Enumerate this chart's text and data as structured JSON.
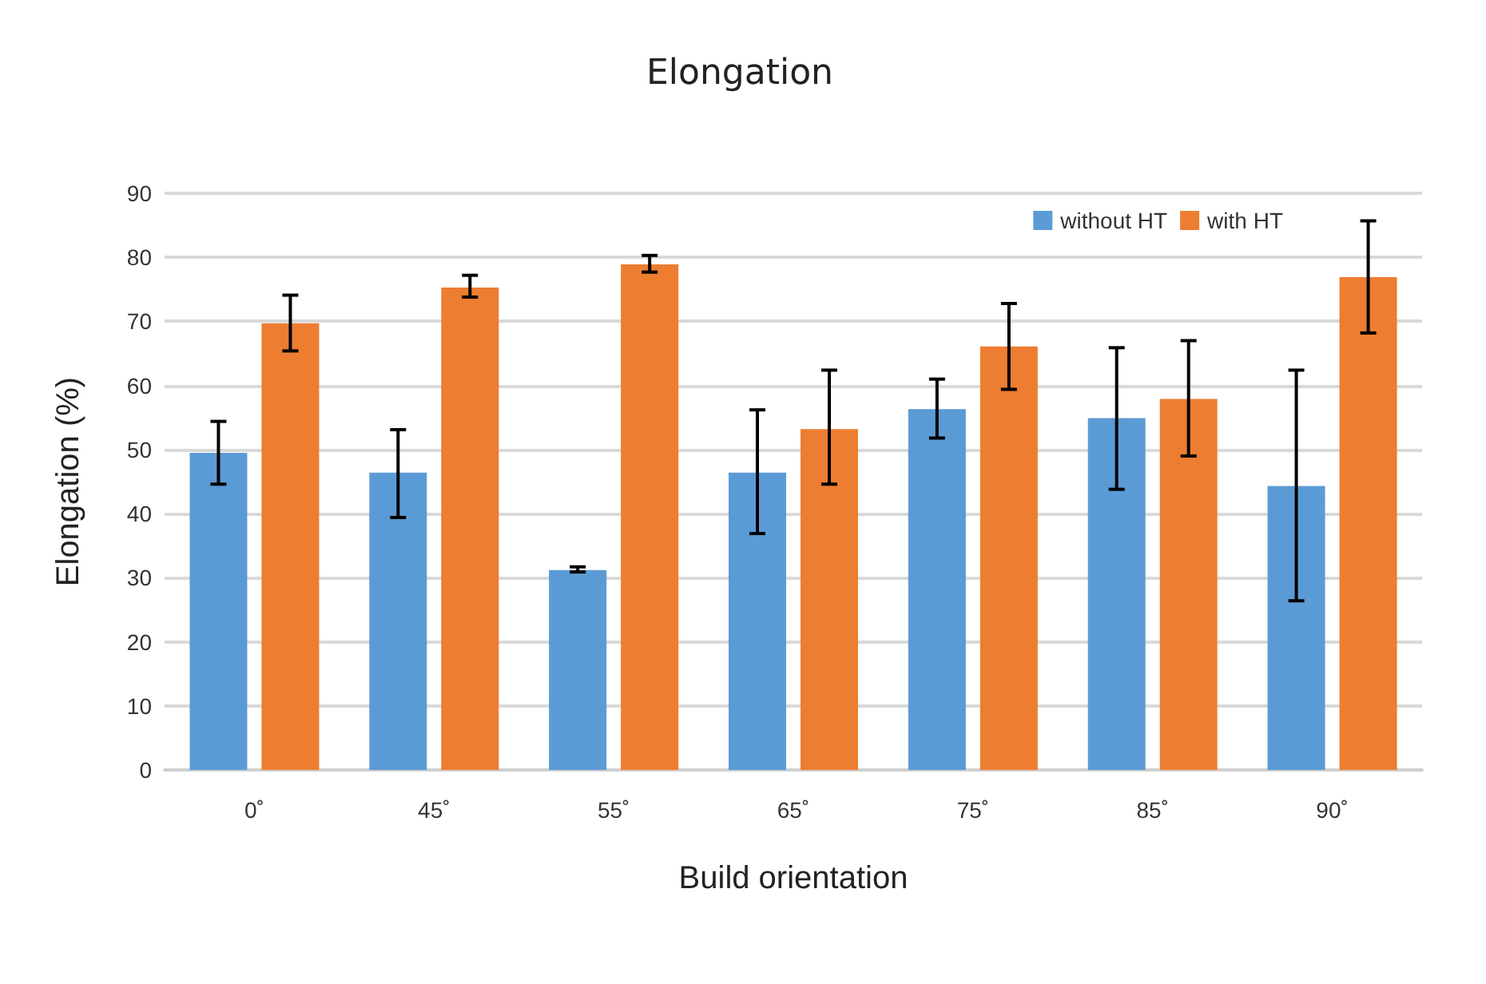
{
  "chart_data": {
    "type": "bar",
    "title": "Elongation",
    "xlabel": "Build orientation",
    "ylabel": "Elongation (%)",
    "categories": [
      "0˚",
      "45˚",
      "55˚",
      "65˚",
      "75˚",
      "85˚",
      "90˚"
    ],
    "series": [
      {
        "name": "without HT",
        "color": "#5b9bd5",
        "values": [
          49.5,
          46.4,
          31.2,
          46.4,
          56.3,
          54.9,
          44.3
        ],
        "errors": [
          [
            44.6,
            54.4
          ],
          [
            39.4,
            53.1
          ],
          [
            30.9,
            31.7
          ],
          [
            36.9,
            56.2
          ],
          [
            51.8,
            61.0
          ],
          [
            43.8,
            65.9
          ],
          [
            26.4,
            62.4
          ]
        ]
      },
      {
        "name": "with HT",
        "color": "#ed7d31",
        "values": [
          69.7,
          75.3,
          78.9,
          53.2,
          66.1,
          57.9,
          76.9
        ],
        "errors": [
          [
            65.4,
            74.1
          ],
          [
            73.8,
            77.2
          ],
          [
            77.7,
            80.3
          ],
          [
            44.6,
            62.4
          ],
          [
            59.4,
            72.8
          ],
          [
            49.0,
            67.0
          ],
          [
            68.2,
            85.7
          ]
        ]
      }
    ],
    "ylim": [
      0,
      90
    ],
    "yticks": [
      0,
      10,
      20,
      30,
      40,
      50,
      60,
      70,
      80,
      90
    ],
    "grid": "y",
    "legend": "top right"
  }
}
